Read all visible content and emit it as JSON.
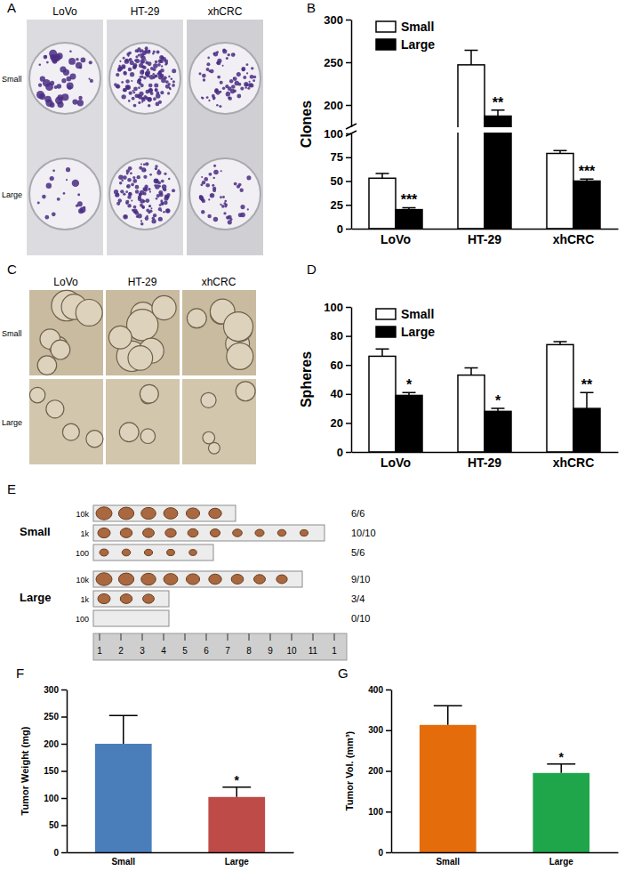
{
  "figure": {
    "A": {
      "label": "A",
      "columns": [
        "LoVo",
        "HT-29",
        "xhCRC"
      ],
      "rows": [
        "Small",
        "Large"
      ]
    },
    "C": {
      "label": "C",
      "columns": [
        "LoVo",
        "HT-29",
        "xhCRC"
      ],
      "rows": [
        "Small",
        "Large"
      ]
    },
    "E": {
      "label": "E",
      "groups": [
        {
          "name": "Small",
          "rows": [
            {
              "dose": "10k",
              "result": "6/6",
              "tumors": 6
            },
            {
              "dose": "1k",
              "result": "10/10",
              "tumors": 10
            },
            {
              "dose": "100",
              "result": "5/6",
              "tumors": 5
            }
          ]
        },
        {
          "name": "Large",
          "rows": [
            {
              "dose": "10k",
              "result": "9/10",
              "tumors": 9
            },
            {
              "dose": "1k",
              "result": "3/4",
              "tumors": 3
            },
            {
              "dose": "100",
              "result": "0/10",
              "tumors": 0
            }
          ]
        }
      ],
      "ruler_labels": [
        "1",
        "2",
        "3",
        "4",
        "5",
        "6",
        "7",
        "8",
        "9",
        "10",
        "11",
        "1"
      ]
    }
  },
  "chart_data": [
    {
      "label": "B",
      "type": "bar",
      "y_label": "Clones",
      "categories": [
        "LoVo",
        "HT-29",
        "xhCRC"
      ],
      "series": [
        {
          "name": "Small",
          "color": "#ffffff",
          "values": [
            53,
            247,
            79
          ],
          "errors": [
            5,
            17,
            3
          ]
        },
        {
          "name": "Large",
          "color": "#000000",
          "values": [
            20,
            187,
            50
          ],
          "errors": [
            2,
            7,
            2
          ],
          "annotations": [
            "***",
            "**",
            "***"
          ]
        }
      ],
      "ylim": [
        0,
        300
      ],
      "ybreak": [
        100,
        175
      ],
      "yticks": [
        0,
        25,
        50,
        75,
        100,
        200,
        250,
        300
      ],
      "legend": "upper left"
    },
    {
      "label": "D",
      "type": "bar",
      "y_label": "Spheres",
      "categories": [
        "LoVo",
        "HT-29",
        "xhCRC"
      ],
      "series": [
        {
          "name": "Small",
          "color": "#ffffff",
          "values": [
            66,
            53,
            74
          ],
          "errors": [
            5,
            5,
            2
          ]
        },
        {
          "name": "Large",
          "color": "#000000",
          "values": [
            39,
            28,
            30
          ],
          "errors": [
            2,
            2,
            11
          ],
          "annotations": [
            "*",
            "*",
            "**"
          ]
        }
      ],
      "ylim": [
        0,
        100
      ],
      "yticks": [
        0,
        20,
        40,
        60,
        80,
        100
      ],
      "legend": "upper left"
    },
    {
      "label": "F",
      "type": "bar",
      "y_label": "Tumor Weight (mg)",
      "categories": [
        "Small",
        "Large"
      ],
      "values": [
        200,
        102
      ],
      "errors": [
        52,
        18
      ],
      "colors": [
        "#4a7ebb",
        "#be4b48"
      ],
      "annotations": [
        null,
        "*"
      ],
      "ylim": [
        0,
        300
      ],
      "yticks": [
        0,
        50,
        100,
        150,
        200,
        250,
        300
      ]
    },
    {
      "label": "G",
      "type": "bar",
      "y_label": "Tumor Vol. (mm³)",
      "categories": [
        "Small",
        "Large"
      ],
      "values": [
        313,
        195
      ],
      "errors": [
        47,
        22
      ],
      "colors": [
        "#e46c0a",
        "#1fa64a"
      ],
      "annotations": [
        null,
        "*"
      ],
      "ylim": [
        0,
        400
      ],
      "yticks": [
        0,
        100,
        200,
        300,
        400
      ]
    }
  ]
}
